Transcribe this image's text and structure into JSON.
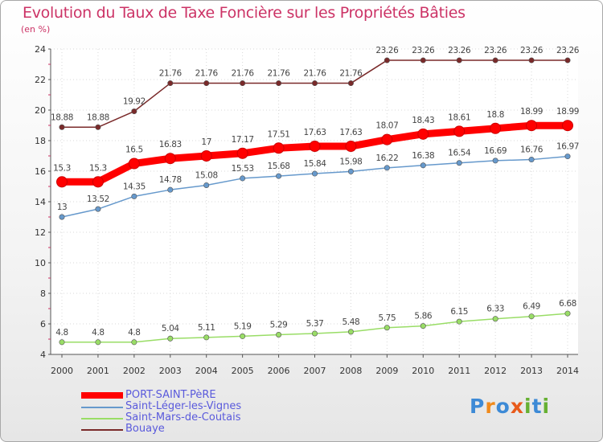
{
  "chart_data": {
    "type": "line",
    "title": "Evolution du Taux de Taxe Foncière sur les Propriétés Bâties",
    "ylabel": "(en %)",
    "xlabel": "",
    "x": [
      "2000",
      "2001",
      "2002",
      "2003",
      "2004",
      "2005",
      "2006",
      "2007",
      "2008",
      "2009",
      "2010",
      "2011",
      "2012",
      "2013",
      "2014"
    ],
    "ylim": [
      4,
      24
    ],
    "yticks": [
      "4",
      "6",
      "8",
      "10",
      "12",
      "14",
      "16",
      "18",
      "20",
      "22",
      "24"
    ],
    "series": [
      {
        "name": "PORT-SAINT-PèRE",
        "color": "#ff0000",
        "values": [
          15.3,
          15.3,
          16.5,
          16.83,
          17,
          17.17,
          17.51,
          17.63,
          17.63,
          18.07,
          18.43,
          18.61,
          18.8,
          18.99,
          18.99
        ],
        "labels": [
          "15.3",
          "15.3",
          "16.5",
          "16.83",
          "17",
          "17.17",
          "17.51",
          "17.63",
          "17.63",
          "18.07",
          "18.43",
          "18.61",
          "18.8",
          "18.99",
          "18.99"
        ]
      },
      {
        "name": "Saint-Léger-les-Vignes",
        "color": "#6699cc",
        "values": [
          13,
          13.52,
          14.35,
          14.78,
          15.08,
          15.53,
          15.68,
          15.84,
          15.98,
          16.22,
          16.38,
          16.54,
          16.69,
          16.76,
          16.97
        ],
        "labels": [
          "13",
          "13.52",
          "14.35",
          "14.78",
          "15.08",
          "15.53",
          "15.68",
          "15.84",
          "15.98",
          "16.22",
          "16.38",
          "16.54",
          "16.69",
          "16.76",
          "16.97"
        ]
      },
      {
        "name": "Saint-Mars-de-Coutais",
        "color": "#99dd66",
        "values": [
          4.8,
          4.8,
          4.8,
          5.04,
          5.11,
          5.19,
          5.29,
          5.37,
          5.48,
          5.75,
          5.86,
          6.15,
          6.33,
          6.49,
          6.68
        ],
        "labels": [
          "4.8",
          "4.8",
          "4.8",
          "5.04",
          "5.11",
          "5.19",
          "5.29",
          "5.37",
          "5.48",
          "5.75",
          "5.86",
          "6.15",
          "6.33",
          "6.49",
          "6.68"
        ]
      },
      {
        "name": "Bouaye",
        "color": "#7a2a2a",
        "values": [
          18.88,
          18.88,
          19.92,
          21.76,
          21.76,
          21.76,
          21.76,
          21.76,
          21.76,
          23.26,
          23.26,
          23.26,
          23.26,
          23.26,
          23.26
        ],
        "labels": [
          "18.88",
          "18.88",
          "19.92",
          "21.76",
          "21.76",
          "21.76",
          "21.76",
          "21.76",
          "21.76",
          "23.26",
          "23.26",
          "23.26",
          "23.26",
          "23.26",
          "23.26"
        ]
      }
    ]
  },
  "legend": {
    "items": [
      "PORT-SAINT-PèRE",
      "Saint-Léger-les-Vignes",
      "Saint-Mars-de-Coutais",
      "Bouaye"
    ]
  },
  "logo": {
    "text": "Proxiti"
  }
}
